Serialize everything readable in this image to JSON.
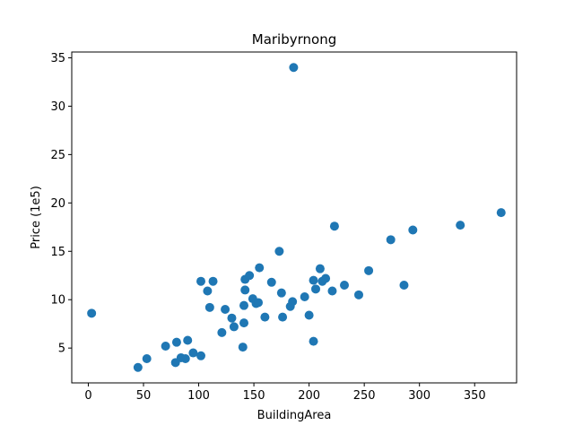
{
  "chart_data": {
    "type": "scatter",
    "title": "Maribyrnong",
    "xlabel": "BuildingArea",
    "ylabel": "Price (1e5)",
    "xlim": [
      -15,
      388
    ],
    "ylim": [
      1.4,
      35.6
    ],
    "xticks": [
      0,
      50,
      100,
      150,
      200,
      250,
      300,
      350
    ],
    "yticks": [
      5,
      10,
      15,
      20,
      25,
      30,
      35
    ],
    "grid": false,
    "legend": "none",
    "colors": {
      "marker": "#1f77b4",
      "axes": "#000000",
      "background": "#ffffff"
    },
    "series": [
      {
        "x": [
          3,
          45,
          53,
          70,
          79,
          80,
          84,
          88,
          90,
          95,
          102,
          102,
          108,
          110,
          113,
          121,
          124,
          130,
          132,
          140,
          141,
          141,
          142,
          142,
          146,
          149,
          152,
          154,
          155,
          160,
          166,
          173,
          175,
          176,
          183,
          185,
          186,
          196,
          200,
          204,
          204,
          206,
          210,
          212,
          215,
          221,
          223,
          232,
          245,
          254,
          274,
          286,
          294,
          337,
          374
        ],
        "y": [
          8.6,
          3.0,
          3.9,
          5.2,
          3.5,
          5.6,
          4.0,
          3.9,
          5.8,
          4.5,
          4.2,
          11.9,
          10.9,
          9.2,
          11.9,
          6.6,
          9.0,
          8.1,
          7.2,
          5.1,
          7.6,
          9.4,
          11.0,
          12.1,
          12.5,
          10.1,
          9.6,
          9.7,
          13.3,
          8.2,
          11.8,
          15.0,
          10.7,
          8.2,
          9.3,
          9.8,
          34.0,
          10.3,
          8.4,
          5.7,
          12.0,
          11.1,
          13.2,
          11.9,
          12.2,
          10.9,
          17.6,
          11.5,
          10.5,
          13.0,
          16.2,
          11.5,
          17.2,
          17.7,
          19.0
        ]
      }
    ]
  }
}
